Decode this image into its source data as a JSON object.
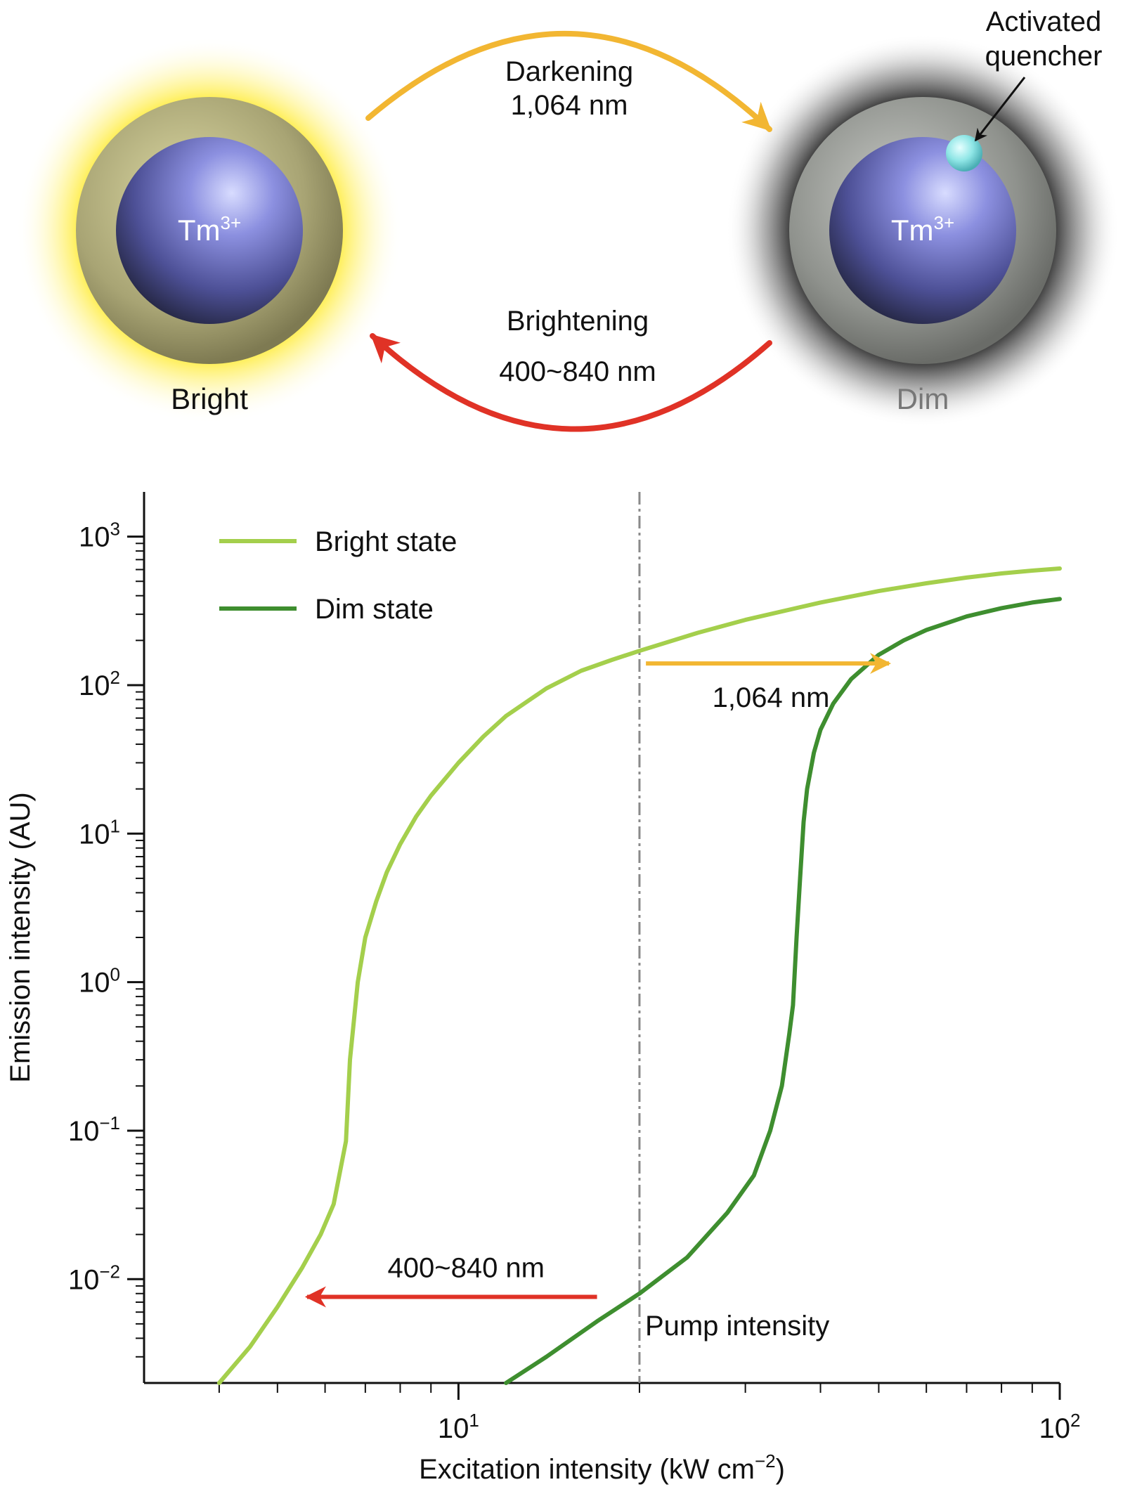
{
  "schematic": {
    "bright_label": "Bright",
    "dim_label": "Dim",
    "core_label": "Tm",
    "core_superscript": "3+",
    "darkening_line1": "Darkening",
    "darkening_line2": "1,064 nm",
    "brightening_line1": "Brightening",
    "brightening_line2": "400~840 nm",
    "quencher_line1": "Activated",
    "quencher_line2": "quencher",
    "colors": {
      "bright_glow": "#ffe600",
      "shell": "#9e9a6e",
      "core": "#7a7fd6",
      "dim_shell": "#8c8f8a",
      "quencher": "#8fe6e6",
      "darkening_arrow": "#f2b632",
      "brightening_arrow": "#e03226"
    }
  },
  "chart_data": {
    "type": "line",
    "title": "",
    "xlabel": "Excitation intensity (kW cm",
    "xlabel_sup": "−2",
    "xlabel_end": ")",
    "ylabel": "Emission intensity (AU)",
    "xscale": "log",
    "yscale": "log",
    "xlim": [
      3.0,
      100
    ],
    "ylim": [
      0.002,
      2000
    ],
    "x_ticks": [
      {
        "value": 10,
        "base": "10",
        "exp": "1"
      },
      {
        "value": 100,
        "base": "10",
        "exp": "2"
      }
    ],
    "y_ticks": [
      {
        "value": 0.01,
        "base": "10",
        "exp": "−2"
      },
      {
        "value": 0.1,
        "base": "10",
        "exp": "−1"
      },
      {
        "value": 1,
        "base": "10",
        "exp": "0"
      },
      {
        "value": 10,
        "base": "10",
        "exp": "1"
      },
      {
        "value": 100,
        "base": "10",
        "exp": "2"
      },
      {
        "value": 1000,
        "base": "10",
        "exp": "3"
      }
    ],
    "legend_position": "top-left",
    "series": [
      {
        "name": "Bright state",
        "color": "#a4cf4c",
        "x": [
          4.0,
          4.5,
          5.0,
          5.5,
          5.9,
          6.2,
          6.5,
          6.6,
          6.8,
          7.0,
          7.3,
          7.6,
          8.0,
          8.5,
          9.0,
          10.0,
          11.0,
          12.0,
          14.0,
          16.0,
          18.0,
          20.0,
          25.0,
          30.0,
          40.0,
          50.0,
          60.0,
          70.0,
          80.0,
          90.0,
          100.0
        ],
        "y": [
          0.002,
          0.0035,
          0.0065,
          0.012,
          0.02,
          0.032,
          0.085,
          0.3,
          1.0,
          2.0,
          3.5,
          5.5,
          8.5,
          13.0,
          18.0,
          30.0,
          45.0,
          62.0,
          95.0,
          125.0,
          148.0,
          170.0,
          225.0,
          275.0,
          360.0,
          430.0,
          485.0,
          530.0,
          565.0,
          590.0,
          610.0
        ]
      },
      {
        "name": "Dim state",
        "color": "#3e8e2f",
        "x": [
          12.0,
          14.0,
          17.0,
          20.0,
          24.0,
          28.0,
          31.0,
          33.0,
          34.5,
          35.5,
          36.0,
          36.5,
          37.0,
          37.5,
          38.0,
          39.0,
          40.0,
          42.0,
          45.0,
          50.0,
          55.0,
          60.0,
          70.0,
          80.0,
          90.0,
          100.0
        ],
        "y": [
          0.002,
          0.003,
          0.0052,
          0.008,
          0.014,
          0.028,
          0.05,
          0.1,
          0.2,
          0.45,
          0.7,
          2.0,
          5.0,
          12.0,
          20.0,
          35.0,
          50.0,
          75.0,
          110.0,
          160.0,
          200.0,
          235.0,
          290.0,
          330.0,
          360.0,
          380.0
        ]
      }
    ],
    "annotations": {
      "pump_label": "Pump intensity",
      "pump_x": 20,
      "darkening_label": "1,064 nm",
      "darkening_arrow": {
        "x_from": 20.5,
        "x_to": 52,
        "y": 140
      },
      "brightening_label": "400~840 nm",
      "brightening_arrow": {
        "x_from": 17,
        "x_to": 5.6,
        "y": 0.0076
      }
    }
  }
}
